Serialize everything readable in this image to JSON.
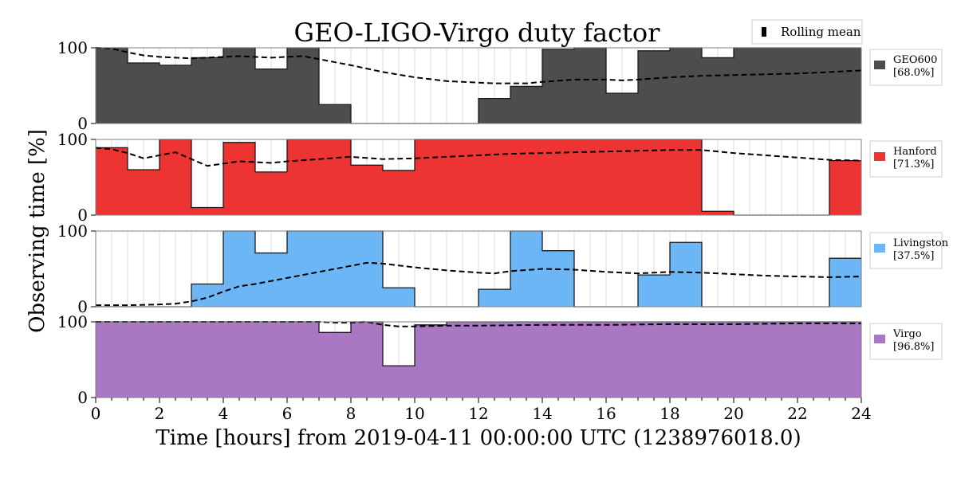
{
  "chart_data": {
    "type": "bar",
    "title": "GEO-LIGO-Virgo duty factor",
    "xlabel": "Time [hours] from 2019-04-11 00:00:00 UTC (1238976018.0)",
    "ylabel": "Observing time [%]",
    "xlim": [
      0,
      24
    ],
    "ylim": [
      0,
      100
    ],
    "x_ticks": [
      0,
      2,
      4,
      6,
      8,
      10,
      12,
      14,
      16,
      18,
      20,
      22,
      24
    ],
    "y_ticks": [
      0,
      100
    ],
    "bin_hours": 1,
    "grid": "vertical every 0.5 h",
    "legend_top": {
      "label": "Rolling mean",
      "placement": "top-right"
    },
    "series": [
      {
        "name": "GEO600",
        "percent_label": "[68.0%]",
        "color": "#4d4d4d",
        "values": [
          100,
          80,
          77,
          87,
          100,
          72,
          100,
          25,
          0,
          0,
          0,
          0,
          33,
          49,
          98,
          100,
          40,
          96,
          100,
          87,
          100,
          100,
          100,
          100
        ],
        "rolling_mean_x": [
          0,
          0.5,
          1,
          1.5,
          2,
          2.5,
          3,
          3.5,
          4,
          4.5,
          5,
          5.5,
          6,
          6.5,
          7,
          7.5,
          8,
          9,
          10,
          11,
          12,
          12.5,
          13,
          13.5,
          14,
          15,
          16,
          16.5,
          17,
          18,
          19,
          20,
          21,
          22,
          23,
          24
        ],
        "rolling_mean_y": [
          100,
          99,
          94,
          90,
          88,
          87,
          86,
          87,
          88,
          89,
          88,
          87,
          88,
          89,
          85,
          81,
          77,
          68,
          61,
          56,
          54,
          53,
          53,
          53,
          55,
          58,
          58,
          57,
          58,
          61,
          63,
          64,
          65,
          66,
          68,
          70
        ]
      },
      {
        "name": "Hanford",
        "percent_label": "[71.3%]",
        "color": "#ee3333",
        "values": [
          89,
          60,
          100,
          10,
          96,
          57,
          100,
          100,
          66,
          59,
          100,
          100,
          100,
          100,
          100,
          100,
          100,
          100,
          100,
          5,
          0,
          0,
          0,
          72
        ],
        "rolling_mean_x": [
          0,
          0.5,
          1,
          1.5,
          2,
          2.5,
          3,
          3.5,
          4,
          4.5,
          5,
          5.5,
          6,
          7,
          8,
          9,
          10,
          11,
          12,
          13,
          14,
          15,
          16,
          17,
          18,
          19,
          20,
          21,
          22,
          23,
          24
        ],
        "rolling_mean_y": [
          89,
          87,
          82,
          75,
          79,
          83,
          74,
          65,
          68,
          71,
          70,
          69,
          71,
          74,
          77,
          74,
          75,
          77,
          79,
          81,
          82,
          83,
          84,
          85,
          86,
          86,
          82,
          79,
          76,
          73,
          72
        ]
      },
      {
        "name": "Livingston",
        "percent_label": "[37.5%]",
        "color": "#6db6f6",
        "values": [
          0,
          0,
          0,
          30,
          100,
          71,
          100,
          100,
          100,
          25,
          0,
          0,
          23,
          100,
          74,
          0,
          0,
          42,
          85,
          0,
          0,
          0,
          0,
          64
        ],
        "rolling_mean_x": [
          0,
          1,
          2,
          2.5,
          3,
          3.5,
          4,
          4.5,
          5,
          6,
          7,
          8,
          8.5,
          9,
          10,
          11,
          12,
          12.5,
          13,
          14,
          15,
          16,
          17,
          18,
          19,
          20,
          21,
          22,
          23,
          24
        ],
        "rolling_mean_y": [
          2,
          2,
          3,
          4,
          7,
          12,
          20,
          27,
          30,
          38,
          46,
          54,
          58,
          57,
          52,
          48,
          45,
          44,
          47,
          50,
          49,
          46,
          44,
          46,
          45,
          43,
          41,
          40,
          39,
          40
        ]
      },
      {
        "name": "Virgo",
        "percent_label": "[96.8%]",
        "color": "#aa77c2",
        "values": [
          100,
          100,
          100,
          100,
          100,
          100,
          100,
          86,
          100,
          42,
          96,
          100,
          100,
          100,
          100,
          100,
          100,
          100,
          100,
          100,
          100,
          100,
          100,
          100
        ],
        "rolling_mean_x": [
          0,
          2,
          4,
          6,
          7,
          7.5,
          8,
          8.5,
          9,
          9.5,
          10,
          11,
          12,
          14,
          16,
          18,
          20,
          22,
          24
        ],
        "rolling_mean_y": [
          100,
          100,
          100,
          100,
          100,
          99,
          99,
          100,
          96,
          94,
          94,
          95,
          95,
          96,
          96,
          97,
          97,
          98,
          98
        ]
      }
    ]
  }
}
